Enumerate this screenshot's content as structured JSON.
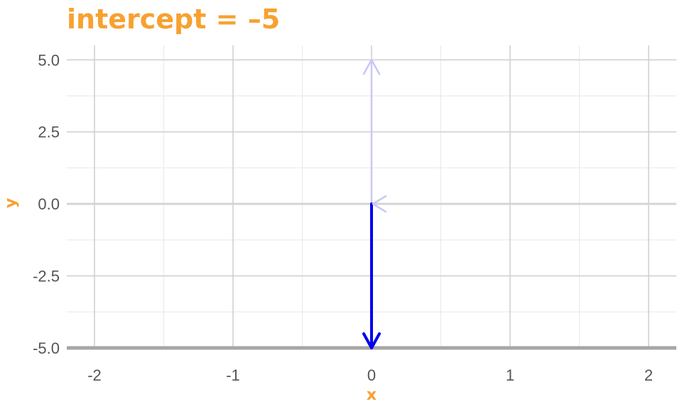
{
  "chart_data": {
    "type": "line",
    "title": "intercept = –5",
    "xlabel": "x",
    "ylabel": "y",
    "xlim": [
      -2.2,
      2.2
    ],
    "ylim": [
      -5,
      5.5
    ],
    "x_ticks": [
      -2,
      -1,
      0,
      1,
      2
    ],
    "x_tick_labels": [
      "-2",
      "-1",
      "0",
      "1",
      "2"
    ],
    "y_ticks": [
      -5,
      -2.5,
      0,
      2.5,
      5
    ],
    "y_tick_labels": [
      "-5.0",
      "-2.5",
      "0.0",
      "2.5",
      "5.0"
    ],
    "grid": true,
    "series": [
      {
        "x": [
          -2.2,
          2.2
        ],
        "y": [
          -5,
          -5
        ],
        "color": "#A6A6A6",
        "style": "intercept line"
      },
      {
        "x": [
          -2.2,
          2.2
        ],
        "y": [
          0,
          0
        ],
        "color": "#D5D5D5",
        "style": "previous line (faded)"
      }
    ],
    "arrows": [
      {
        "from": [
          0,
          0
        ],
        "to": [
          0,
          5
        ],
        "color": "#C8C8F5",
        "faded": true
      },
      {
        "from": [
          0,
          0
        ],
        "to": [
          0,
          -5
        ],
        "color": "#0000EE",
        "faded": false
      }
    ],
    "markers": [
      {
        "x": 0,
        "y": 0,
        "shape": "open-chevron-left",
        "color": "#C8C8F5"
      }
    ]
  }
}
